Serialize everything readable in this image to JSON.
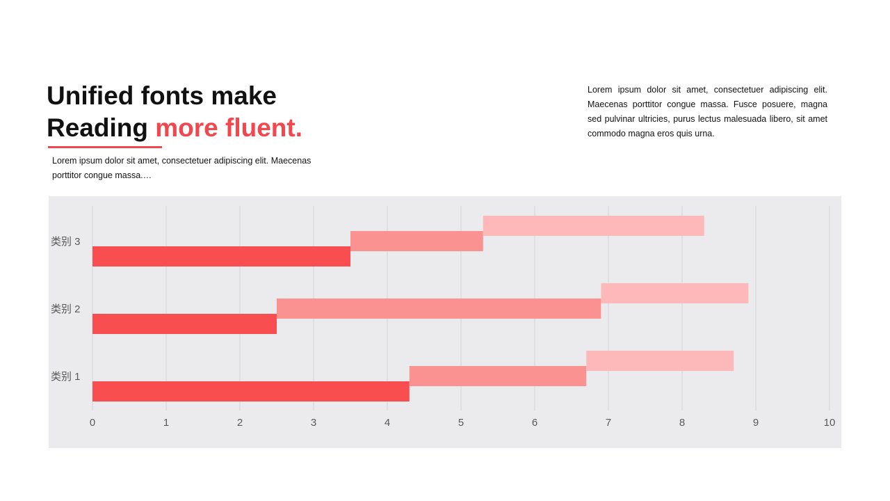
{
  "heading": {
    "line1": "Unified fonts make",
    "line2_plain": "Reading ",
    "line2_accent": "more fluent."
  },
  "subtitle": "Lorem ipsum dolor sit amet, consectetuer adipiscing elit. Maecenas porttitor congue massa.…",
  "side_text": "Lorem ipsum dolor sit amet, consectetuer adipiscing elit. Maecenas porttitor congue massa. Fusce posuere, magna sed pulvinar ultricies, purus lectus malesuada libero, sit amet commodo magna eros quis urna.",
  "colors": {
    "accent": "#f0484e",
    "panel": "#ebebed",
    "series": [
      "#f94e50",
      "#fb9292",
      "#fdb9b9"
    ]
  },
  "chart_data": {
    "type": "bar",
    "orientation": "horizontal",
    "stacked": true,
    "categories": [
      "类别 1",
      "类别 2",
      "类别 3"
    ],
    "series": [
      {
        "values": [
          4.3,
          2.5,
          3.5
        ]
      },
      {
        "values": [
          2.4,
          4.4,
          1.8
        ]
      },
      {
        "values": [
          2.0,
          2.0,
          3.0
        ]
      }
    ],
    "xlim": [
      0,
      10
    ],
    "x_ticks": [
      0,
      1,
      2,
      3,
      4,
      5,
      6,
      7,
      8,
      9,
      10
    ],
    "grid": "vertical",
    "legend": "none"
  }
}
